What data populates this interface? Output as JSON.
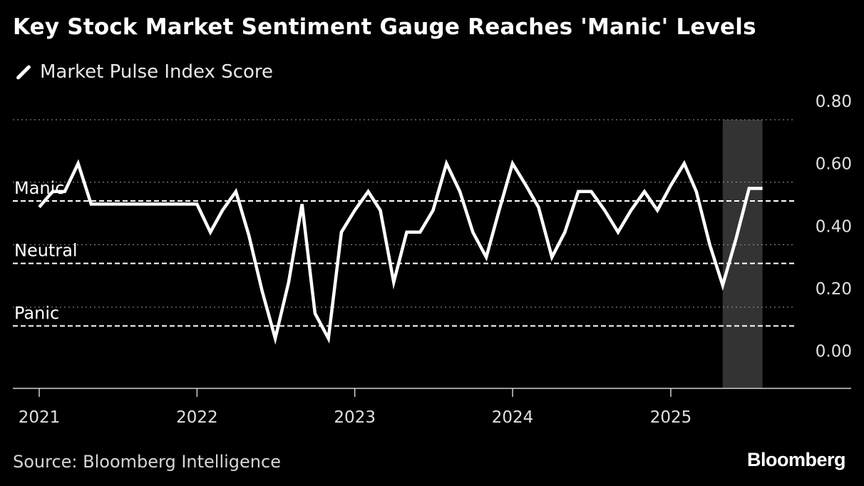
{
  "title": "Key Stock Market Sentiment Gauge Reaches 'Manic' Levels",
  "source": "Source: Bloomberg Intelligence",
  "brand": "Bloomberg",
  "colors": {
    "background": "#000000",
    "line": "#ffffff",
    "highlight": "#333333",
    "grid": "#9a9a9a"
  },
  "chart_data": {
    "type": "line",
    "legend_placement": "top-left",
    "grid": true,
    "y_ticks": [
      "0.80",
      "0.60",
      "0.40",
      "0.20",
      "0.00"
    ],
    "x_ticks": [
      "2021",
      "2022",
      "2023",
      "2024",
      "2025"
    ],
    "ylim": [
      -0.06,
      0.8
    ],
    "xlim": [
      "2021-01-01",
      "2025-12-31"
    ],
    "thresholds": [
      {
        "label": "Manic",
        "value": 0.54
      },
      {
        "label": "Neutral",
        "value": 0.34
      },
      {
        "label": "Panic",
        "value": 0.14
      }
    ],
    "highlight_range": [
      "2025-05-01",
      "2025-08-01"
    ],
    "series": [
      {
        "name": "Market Pulse Index Score",
        "dates": [
          "2021-01-01",
          "2021-02-01",
          "2021-03-01",
          "2021-04-01",
          "2021-05-01",
          "2021-06-01",
          "2021-07-01",
          "2021-08-01",
          "2021-09-01",
          "2021-10-01",
          "2021-11-01",
          "2021-12-01",
          "2022-01-01",
          "2022-02-01",
          "2022-03-01",
          "2022-04-01",
          "2022-05-01",
          "2022-06-01",
          "2022-07-01",
          "2022-08-01",
          "2022-09-01",
          "2022-10-01",
          "2022-11-01",
          "2022-12-01",
          "2023-01-01",
          "2023-02-01",
          "2023-03-01",
          "2023-04-01",
          "2023-05-01",
          "2023-06-01",
          "2023-07-01",
          "2023-08-01",
          "2023-09-01",
          "2023-10-01",
          "2023-11-01",
          "2023-12-01",
          "2024-01-01",
          "2024-02-01",
          "2024-03-01",
          "2024-04-01",
          "2024-05-01",
          "2024-06-01",
          "2024-07-01",
          "2024-08-01",
          "2024-09-01",
          "2024-10-01",
          "2024-11-01",
          "2024-12-01",
          "2025-01-01",
          "2025-02-01",
          "2025-03-01",
          "2025-04-01",
          "2025-05-01",
          "2025-06-01",
          "2025-07-01",
          "2025-08-01"
        ],
        "values": [
          0.52,
          0.57,
          0.57,
          0.66,
          0.53,
          0.53,
          0.53,
          0.53,
          0.53,
          0.53,
          0.53,
          0.53,
          0.53,
          0.44,
          0.51,
          0.57,
          0.43,
          0.25,
          0.1,
          0.28,
          0.53,
          0.18,
          0.1,
          0.44,
          0.51,
          0.57,
          0.51,
          0.28,
          0.44,
          0.44,
          0.51,
          0.66,
          0.57,
          0.44,
          0.36,
          0.51,
          0.66,
          0.59,
          0.52,
          0.36,
          0.44,
          0.57,
          0.57,
          0.51,
          0.44,
          0.51,
          0.57,
          0.51,
          0.59,
          0.66,
          0.57,
          0.4,
          0.27,
          0.42,
          0.58,
          0.58
        ]
      }
    ]
  }
}
